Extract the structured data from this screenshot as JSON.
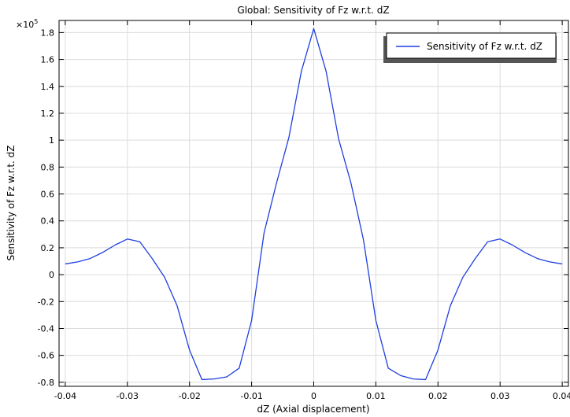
{
  "chart_data": {
    "type": "line",
    "title": "Global: Sensitivity of Fz w.r.t. dZ",
    "xlabel": "dZ (Axial displacement)",
    "ylabel": "Sensitivity of Fz w.r.t. dZ",
    "y_multiplier": "×10",
    "y_multiplier_exp": "5",
    "xlim": [
      -0.041,
      0.041
    ],
    "ylim": [
      -0.83,
      1.89
    ],
    "x_ticks": [
      -0.04,
      -0.03,
      -0.02,
      -0.01,
      0,
      0.01,
      0.02,
      0.03,
      0.04
    ],
    "x_tick_labels": [
      "-0.04",
      "-0.03",
      "-0.02",
      "-0.01",
      "0",
      "0.01",
      "0.02",
      "0.03",
      "0.04"
    ],
    "y_ticks": [
      -0.8,
      -0.6,
      -0.4,
      -0.2,
      0,
      0.2,
      0.4,
      0.6,
      0.8,
      1,
      1.2,
      1.4,
      1.6,
      1.8
    ],
    "y_tick_labels": [
      "-0.8",
      "-0.6",
      "-0.4",
      "-0.2",
      "0",
      "0.2",
      "0.4",
      "0.6",
      "0.8",
      "1",
      "1.2",
      "1.4",
      "1.6",
      "1.8"
    ],
    "grid": true,
    "legend_position": "top-right",
    "series": [
      {
        "name": "Sensitivity of Fz w.r.t. dZ",
        "color": "#1f3fe0",
        "x": [
          -0.04,
          -0.038,
          -0.036,
          -0.034,
          -0.032,
          -0.03,
          -0.028,
          -0.026,
          -0.024,
          -0.022,
          -0.02,
          -0.018,
          -0.016,
          -0.014,
          -0.012,
          -0.01,
          -0.008,
          -0.006,
          -0.004,
          -0.002,
          0,
          0.002,
          0.004,
          0.006,
          0.008,
          0.01,
          0.012,
          0.014,
          0.016,
          0.018,
          0.02,
          0.022,
          0.024,
          0.026,
          0.028,
          0.03,
          0.032,
          0.034,
          0.036,
          0.038,
          0.04
        ],
        "y": [
          0.08,
          0.095,
          0.12,
          0.165,
          0.22,
          0.265,
          0.245,
          0.12,
          -0.02,
          -0.23,
          -0.56,
          -0.78,
          -0.775,
          -0.76,
          -0.695,
          -0.34,
          0.31,
          0.68,
          1.02,
          1.51,
          1.83,
          1.51,
          1.01,
          0.68,
          0.26,
          -0.34,
          -0.695,
          -0.75,
          -0.775,
          -0.78,
          -0.56,
          -0.23,
          -0.02,
          0.12,
          0.245,
          0.265,
          0.22,
          0.165,
          0.12,
          0.095,
          0.08
        ]
      }
    ]
  }
}
